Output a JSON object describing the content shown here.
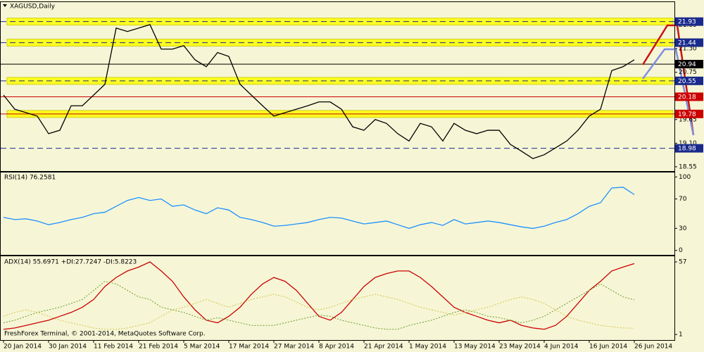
{
  "chart_data": [
    {
      "type": "line",
      "title": "XAGUSD,Daily",
      "ylim": [
        18.45,
        22.4
      ],
      "yticks": [
        18.55,
        {
          "value": 19.1,
          "label": "19.10"
        },
        19.65,
        {
          "value": 20.2,
          "label": "20.20"
        },
        20.75,
        {
          "value": 21.3,
          "label": "21.30"
        },
        21.85
      ],
      "series": [
        {
          "color": "#000000",
          "values": [
            20.22,
            19.89,
            19.81,
            19.73,
            19.32,
            19.4,
            19.97,
            19.97,
            20.22,
            20.47,
            21.78,
            21.7,
            21.78,
            21.86,
            21.29,
            21.29,
            21.37,
            21.04,
            20.88,
            21.21,
            21.12,
            20.47,
            20.22,
            19.97,
            19.73,
            19.81,
            19.89,
            19.97,
            20.06,
            20.06,
            19.89,
            19.48,
            19.4,
            19.65,
            19.56,
            19.32,
            19.15,
            19.56,
            19.48,
            19.15,
            19.56,
            19.4,
            19.32,
            19.4,
            19.4,
            19.07,
            18.91,
            18.74,
            18.83,
            18.99,
            19.15,
            19.4,
            19.73,
            19.89,
            20.79,
            20.88,
            21.04
          ]
        }
      ],
      "levels": [
        {
          "value": 21.93,
          "color": "#1a2a8c",
          "dashed": true,
          "band": true
        },
        {
          "value": 21.44,
          "color": "#1a2a8c",
          "dashed": true,
          "band": true
        },
        {
          "value": 20.94,
          "color": "#000000",
          "dashed": false,
          "band": false
        },
        {
          "value": 20.55,
          "color": "#1a2a8c",
          "dashed": true,
          "band": true
        },
        {
          "value": 20.18,
          "color": "#cc0000",
          "dashed": false,
          "band": false
        },
        {
          "value": 19.78,
          "color": "#cc0000",
          "dashed": false,
          "band": true
        },
        {
          "value": 18.98,
          "color": "#1a2a8c",
          "dashed": true,
          "band": false
        }
      ]
    },
    {
      "type": "line",
      "title": "RSI(14) 76.2581",
      "ylim": [
        -6,
        107
      ],
      "yticks": [
        0,
        30,
        70,
        100
      ],
      "series": [
        {
          "color": "#1e90ff",
          "values": [
            45,
            42,
            43,
            40,
            35,
            38,
            42,
            45,
            50,
            52,
            60,
            68,
            72,
            68,
            70,
            60,
            62,
            55,
            50,
            58,
            55,
            45,
            42,
            38,
            33,
            34,
            36,
            38,
            42,
            45,
            44,
            40,
            36,
            38,
            40,
            35,
            30,
            35,
            38,
            34,
            42,
            36,
            38,
            40,
            38,
            35,
            32,
            30,
            33,
            38,
            42,
            50,
            60,
            65,
            85,
            86,
            76
          ]
        }
      ]
    },
    {
      "type": "line",
      "title": "ADX(14) 55.6971 +DI:27.7247 -DI:5.8223",
      "credit": "FreshForex Terminal, © 2001-2014, MetaQuotes Software Corp.",
      "ylim": [
        -3.3,
        61.9
      ],
      "yticks": [
        1,
        57
      ],
      "categories": [
        "20 Jan 2014",
        null,
        null,
        null,
        "30 Jan 2014",
        null,
        null,
        null,
        "11 Feb 2014",
        null,
        null,
        null,
        "21 Feb 2014",
        null,
        null,
        null,
        "5 Mar 2014",
        null,
        null,
        null,
        "17 Mar 2014",
        null,
        null,
        null,
        "27 Mar 2014",
        null,
        null,
        null,
        "8 Apr 2014",
        null,
        null,
        null,
        "21 Apr 2014",
        null,
        null,
        null,
        "1 May 2014",
        null,
        null,
        null,
        "13 May 2014",
        null,
        null,
        null,
        "23 May 2014",
        null,
        null,
        null,
        "4 Jun 2014",
        null,
        null,
        null,
        "16 Jun 2014",
        null,
        null,
        null,
        "26 Jun 2014"
      ],
      "series": [
        {
          "color": "#cc0000",
          "dashed": false,
          "values": [
            5,
            6,
            8,
            10,
            12,
            15,
            18,
            22,
            28,
            38,
            45,
            50,
            53,
            57,
            50,
            42,
            30,
            20,
            12,
            10,
            15,
            22,
            32,
            40,
            45,
            42,
            35,
            25,
            15,
            12,
            18,
            28,
            38,
            45,
            48,
            50,
            50,
            45,
            38,
            30,
            22,
            18,
            15,
            12,
            10,
            12,
            8,
            6,
            5,
            8,
            15,
            25,
            35,
            42,
            50,
            53,
            55.6971
          ]
        },
        {
          "color": "#6b9a2a",
          "dashed": true,
          "values": [
            10,
            12,
            15,
            18,
            20,
            22,
            25,
            28,
            35,
            42,
            40,
            35,
            30,
            28,
            22,
            20,
            18,
            15,
            12,
            14,
            12,
            10,
            8,
            8,
            8,
            10,
            12,
            14,
            16,
            15,
            12,
            10,
            8,
            6,
            5,
            5,
            8,
            10,
            12,
            15,
            18,
            20,
            18,
            15,
            14,
            12,
            10,
            12,
            15,
            20,
            25,
            30,
            35,
            40,
            35,
            30,
            27.7247
          ]
        },
        {
          "color": "#d4c24a",
          "dashed": true,
          "values": [
            15,
            18,
            20,
            18,
            15,
            12,
            10,
            8,
            6,
            5,
            5,
            6,
            8,
            10,
            15,
            20,
            22,
            25,
            28,
            25,
            22,
            25,
            28,
            30,
            32,
            30,
            26,
            22,
            20,
            22,
            25,
            28,
            30,
            32,
            30,
            28,
            25,
            22,
            20,
            18,
            16,
            18,
            20,
            22,
            25,
            28,
            30,
            28,
            25,
            20,
            15,
            12,
            10,
            8,
            7,
            6,
            5.8223
          ]
        }
      ]
    }
  ]
}
